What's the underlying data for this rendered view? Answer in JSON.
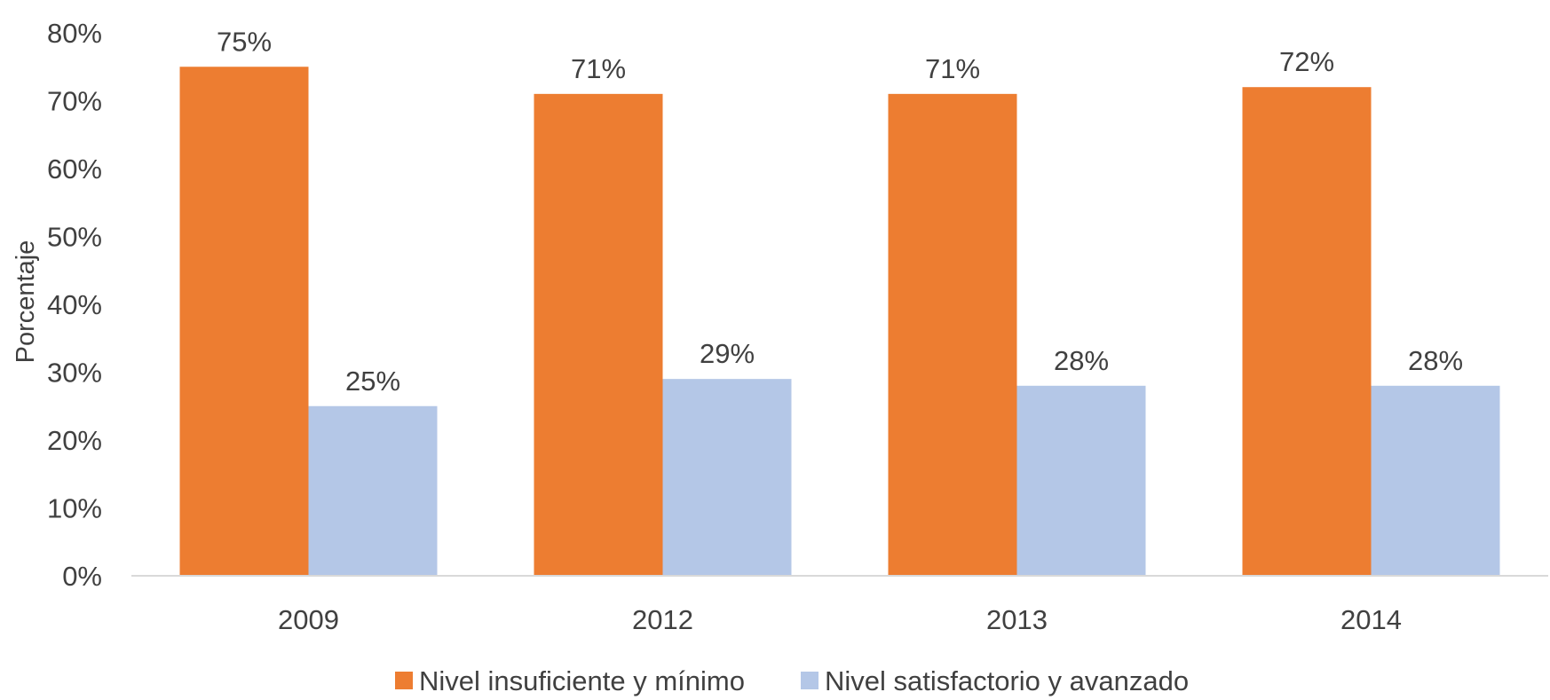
{
  "chart_data": {
    "type": "bar",
    "title": "",
    "xlabel": "",
    "ylabel": "Porcentaje",
    "categories": [
      "2009",
      "2012",
      "2013",
      "2014"
    ],
    "series": [
      {
        "name": "Nivel insuficiente y mínimo",
        "color": "#ED7D31",
        "values": [
          75,
          71,
          71,
          72
        ],
        "labels": [
          "75%",
          "71%",
          "71%",
          "72%"
        ]
      },
      {
        "name": "Nivel satisfactorio y avanzado",
        "color": "#B4C7E7",
        "values": [
          25,
          29,
          28,
          28
        ],
        "labels": [
          "25%",
          "29%",
          "28%",
          "28%"
        ]
      }
    ],
    "ylim": [
      0,
      80
    ],
    "yticks": [
      {
        "value": 0,
        "label": "0%"
      },
      {
        "value": 10,
        "label": "10%"
      },
      {
        "value": 20,
        "label": "20%"
      },
      {
        "value": 30,
        "label": "30%"
      },
      {
        "value": 40,
        "label": "40%"
      },
      {
        "value": 50,
        "label": "50%"
      },
      {
        "value": 60,
        "label": "60%"
      },
      {
        "value": 70,
        "label": "70%"
      },
      {
        "value": 80,
        "label": "80%"
      }
    ],
    "grid": false,
    "legend_position": "bottom-center",
    "axis_color": "#D9D9D9"
  }
}
